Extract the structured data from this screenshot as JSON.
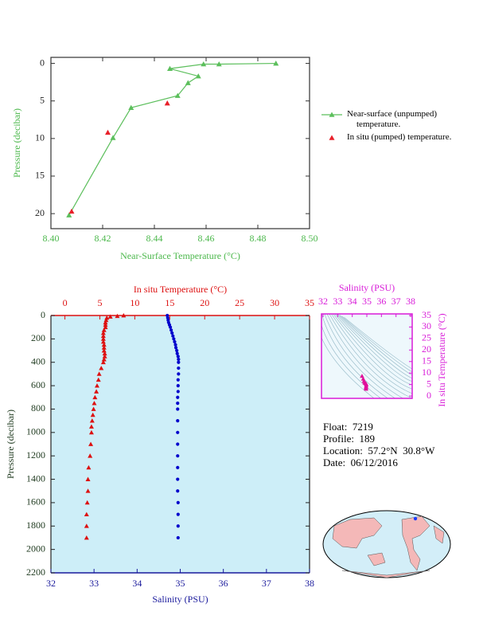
{
  "chart_data": [
    {
      "type": "line",
      "xlabel": "Near-Surface Temperature (°C)",
      "ylabel": "Pressure (decibar)",
      "xlim": [
        8.4,
        8.5
      ],
      "xticks": [
        {
          "value": 8.4,
          "label": "8.40"
        },
        {
          "value": 8.42,
          "label": "8.42"
        },
        {
          "value": 8.44,
          "label": "8.44"
        },
        {
          "value": 8.46,
          "label": "8.46"
        },
        {
          "value": 8.48,
          "label": "8.48"
        },
        {
          "value": 8.5,
          "label": "8.50"
        }
      ],
      "ylim": [
        -0.8,
        22
      ],
      "y_inverted": true,
      "yticks": [
        0,
        5,
        10,
        15,
        20
      ],
      "axis_color": "#4cb84c",
      "series": [
        {
          "name": "Near-surface (unpumped) temperature.",
          "color": "#5cbf5c",
          "line": true,
          "marker": "triangle",
          "x": [
            8.487,
            8.465,
            8.459,
            8.446,
            8.457,
            8.453,
            8.449,
            8.431,
            8.424,
            8.407
          ],
          "values": [
            0,
            0.1,
            0.1,
            0.7,
            1.7,
            2.6,
            4.3,
            5.9,
            9.9,
            20.2
          ]
        },
        {
          "name": "In situ (pumped) temperature.",
          "color": "#e8202a",
          "line": false,
          "marker": "triangle",
          "x": [
            8.445,
            8.422,
            8.408
          ],
          "values": [
            5.3,
            9.2,
            19.7
          ]
        }
      ]
    },
    {
      "type": "profile",
      "ylabel": "Pressure (decibar)",
      "ylim": [
        0,
        2200
      ],
      "y_inverted": true,
      "yticks": [
        0,
        200,
        400,
        600,
        800,
        1000,
        1200,
        1400,
        1600,
        1800,
        2000,
        2200
      ],
      "xlabel": "Salinity (PSU)",
      "xlim": [
        32,
        38
      ],
      "xticks": [
        32,
        33,
        34,
        35,
        36,
        37,
        38
      ],
      "x_color": "#1a1a9c",
      "x2label": "In situ Temperature (°C)",
      "x2lim": [
        -2,
        35
      ],
      "x2ticks": [
        0,
        5,
        10,
        15,
        20,
        25,
        30,
        35
      ],
      "x2_color": "#dd1111",
      "background": "#cdeef8",
      "series": [
        {
          "axis": "x2",
          "color": "#dd1111",
          "marker": "triangle",
          "x": [
            8.4,
            7.5,
            6.5,
            6.0,
            5.9,
            5.8,
            5.8,
            5.8,
            5.6,
            5.5,
            5.5,
            5.5,
            5.5,
            5.6,
            5.6,
            5.6,
            5.7,
            5.7,
            5.6,
            5.5,
            5.2,
            4.9,
            4.8,
            4.6,
            4.5,
            4.3,
            4.2,
            4.1,
            4.0,
            3.9,
            3.8,
            3.8,
            3.7,
            3.6,
            3.4,
            3.3,
            3.3,
            3.2,
            3.1,
            3.1,
            3.1
          ],
          "values": [
            0,
            5,
            10,
            20,
            40,
            60,
            80,
            100,
            125,
            150,
            175,
            200,
            225,
            250,
            275,
            300,
            325,
            350,
            375,
            400,
            450,
            500,
            550,
            600,
            650,
            700,
            750,
            800,
            850,
            900,
            950,
            1000,
            1100,
            1200,
            1300,
            1400,
            1500,
            1600,
            1700,
            1800,
            1900
          ]
        },
        {
          "axis": "x",
          "color": "#0000cc",
          "marker": "circle",
          "x": [
            34.7,
            34.71,
            34.72,
            34.73,
            34.75,
            34.77,
            34.79,
            34.81,
            34.83,
            34.85,
            34.87,
            34.89,
            34.9,
            34.92,
            34.93,
            34.95,
            34.96,
            34.96,
            34.96,
            34.96,
            34.95,
            34.95,
            34.95,
            34.94,
            34.94,
            34.94,
            34.94,
            34.94,
            34.94,
            34.94,
            34.94,
            34.94,
            34.94,
            34.95,
            34.95,
            34.95,
            34.95
          ],
          "values": [
            0,
            20,
            40,
            60,
            80,
            100,
            125,
            150,
            175,
            200,
            225,
            250,
            275,
            300,
            325,
            350,
            375,
            400,
            450,
            500,
            550,
            600,
            650,
            700,
            750,
            800,
            900,
            1000,
            1100,
            1200,
            1300,
            1400,
            1500,
            1600,
            1700,
            1800,
            1900
          ]
        }
      ]
    },
    {
      "type": "ts",
      "xlabel": "Salinity (PSU)",
      "xlim": [
        32,
        38
      ],
      "xticks": [
        32,
        33,
        34,
        35,
        36,
        37,
        38
      ],
      "ylabel": "In situ Temperature (°C)",
      "ylim": [
        -1,
        35.7
      ],
      "yticks": [
        0,
        5,
        10,
        15,
        20,
        25,
        30,
        35
      ],
      "axis_color": "#d81bd8",
      "series": [
        {
          "color": "#e0109a",
          "marker": "triangle",
          "x": [
            34.67,
            34.75,
            34.8,
            34.85,
            34.9,
            34.93,
            34.96,
            34.96,
            34.95,
            34.94,
            34.94,
            34.95
          ],
          "values": [
            8.7,
            7.5,
            6.5,
            5.8,
            5.6,
            5.5,
            5.2,
            4.8,
            4.2,
            3.8,
            3.5,
            3.1
          ]
        }
      ]
    }
  ],
  "info": [
    "Float:  7219",
    "Profile:  189",
    "Location:  57.2°N  30.8°W",
    "Date:  06/12/2016"
  ]
}
